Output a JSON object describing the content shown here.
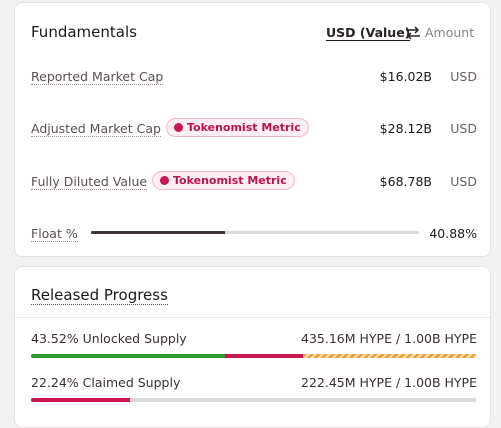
{
  "fundamentals": {
    "title": "Fundamentals",
    "toggle": {
      "active": "USD (Value)",
      "inactive": "Amount"
    },
    "rows": [
      {
        "label": "Reported Market Cap",
        "value": "$16.02B",
        "unit": "USD"
      },
      {
        "label": "Adjusted Market Cap",
        "badge": "Tokenomist Metric",
        "value": "$28.12B",
        "unit": "USD"
      },
      {
        "label": "Fully Diluted Value",
        "badge": "Tokenomist Metric",
        "value": "$68.78B",
        "unit": "USD"
      }
    ],
    "float": {
      "label": "Float %",
      "value": 40.88,
      "value_label": "40.88%"
    }
  },
  "released_progress": {
    "title": "Released Progress",
    "rows": [
      {
        "label": "43.52% Unlocked Supply",
        "amount": "435.16M HYPE / 1.00B HYPE",
        "segments": [
          43.52,
          17.5
        ]
      },
      {
        "label": "22.24% Claimed Supply",
        "amount": "222.45M HYPE / 1.00B HYPE",
        "segments": [
          22.24
        ]
      }
    ]
  }
}
